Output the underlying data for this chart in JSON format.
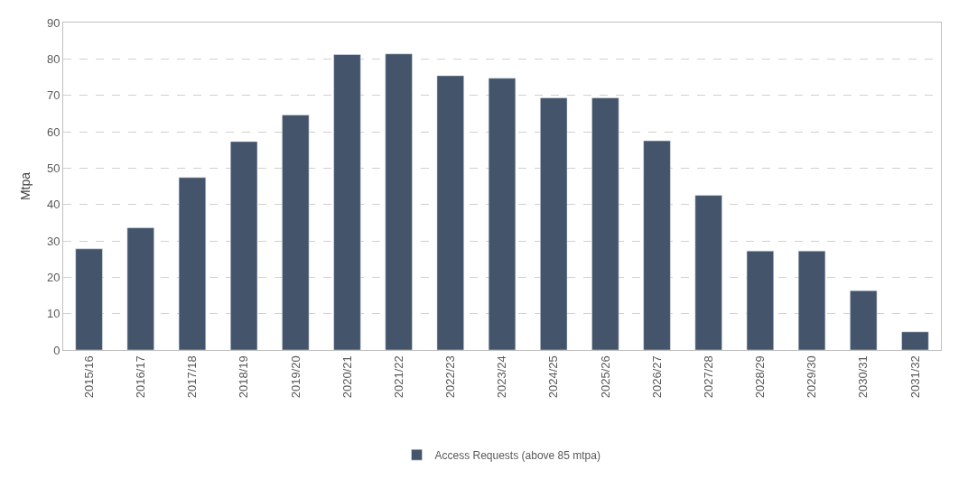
{
  "chart_data": {
    "type": "bar",
    "ylabel": "Mtpa",
    "categories": [
      "2015/16",
      "2016/17",
      "2017/18",
      "2018/19",
      "2019/20",
      "2020/21",
      "2021/22",
      "2022/23",
      "2023/24",
      "2024/25",
      "2025/26",
      "2026/27",
      "2027/28",
      "2028/29",
      "2029/30",
      "2030/31",
      "2031/32"
    ],
    "series": [
      {
        "name": "Access Requests (above 85 mtpa)",
        "color": "#44546a",
        "values": [
          27.8,
          33.6,
          47.4,
          57.3,
          64.6,
          81.2,
          81.4,
          75.4,
          74.7,
          69.3,
          69.3,
          57.5,
          42.5,
          27.2,
          27.2,
          16.3,
          5.0
        ]
      }
    ],
    "ylim": [
      0,
      90
    ],
    "yticks": [
      0,
      10,
      20,
      30,
      40,
      50,
      60,
      70,
      80,
      90
    ],
    "grid": "y",
    "legend": "bottom"
  }
}
